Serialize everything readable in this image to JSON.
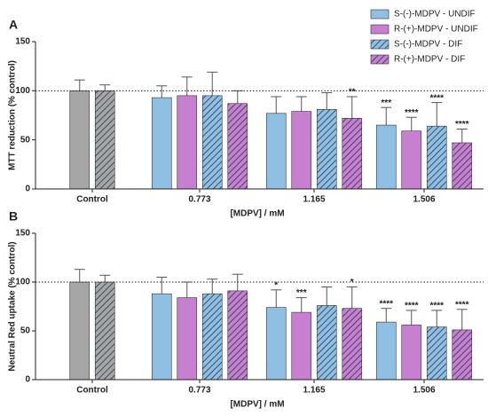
{
  "chart_data": [
    {
      "type": "bar",
      "panel": "A",
      "ylabel": "MTT reduction (% control)",
      "xlabel": "[MDPV] / mM",
      "categories": [
        "Control",
        "0.773",
        "1.165",
        "1.506"
      ],
      "ylim": [
        0,
        150
      ],
      "yticks": [
        0,
        50,
        100,
        150
      ],
      "reference_line": 100,
      "legend": "top-right",
      "control": [
        {
          "color": "#a6a6a6",
          "hatched": false,
          "value": 100,
          "error": 11
        },
        {
          "color": "#a6a6a6",
          "hatched": true,
          "value": 100,
          "error": 6
        }
      ],
      "series": [
        {
          "name": "S-(-)-MDPV - UNDIF",
          "color": "#8fbfe3",
          "hatched": false,
          "values": [
            null,
            93,
            77,
            65
          ],
          "errors": [
            null,
            12,
            17,
            18
          ],
          "annotations": [
            null,
            null,
            null,
            "***"
          ]
        },
        {
          "name": "R-(+)-MDPV - UNDIF",
          "color": "#c77fcf",
          "hatched": false,
          "values": [
            null,
            95,
            79,
            59
          ],
          "errors": [
            null,
            19,
            15,
            14
          ],
          "annotations": [
            null,
            null,
            null,
            "****"
          ]
        },
        {
          "name": "S-(-)-MDPV - DIF",
          "color": "#8fbfe3",
          "hatched": true,
          "values": [
            null,
            95,
            81,
            64
          ],
          "errors": [
            null,
            24,
            17,
            24
          ],
          "annotations": [
            null,
            null,
            null,
            "****"
          ]
        },
        {
          "name": "R-(+)-MDPV - DIF",
          "color": "#c77fcf",
          "hatched": true,
          "values": [
            null,
            87,
            72,
            47
          ],
          "errors": [
            null,
            13,
            22,
            14
          ],
          "annotations": [
            null,
            null,
            "**",
            "****"
          ]
        }
      ]
    },
    {
      "type": "bar",
      "panel": "B",
      "ylabel": "Neutral Red uptake (% control)",
      "xlabel": "[MDPV] / mM",
      "categories": [
        "Control",
        "0.773",
        "1.165",
        "1.506"
      ],
      "ylim": [
        0,
        150
      ],
      "yticks": [
        0,
        50,
        100,
        150
      ],
      "reference_line": 100,
      "control": [
        {
          "color": "#a6a6a6",
          "hatched": false,
          "value": 100,
          "error": 13
        },
        {
          "color": "#a6a6a6",
          "hatched": true,
          "value": 100,
          "error": 7
        }
      ],
      "series": [
        {
          "color": "#8fbfe3",
          "hatched": false,
          "values": [
            null,
            88,
            74,
            59
          ],
          "errors": [
            null,
            17,
            18,
            14
          ],
          "annotations": [
            null,
            null,
            "*",
            "****"
          ]
        },
        {
          "color": "#c77fcf",
          "hatched": false,
          "values": [
            null,
            84,
            69,
            56
          ],
          "errors": [
            null,
            16,
            15,
            15
          ],
          "annotations": [
            null,
            null,
            "***",
            "****"
          ]
        },
        {
          "color": "#8fbfe3",
          "hatched": true,
          "values": [
            null,
            88,
            76,
            54
          ],
          "errors": [
            null,
            15,
            19,
            17
          ],
          "annotations": [
            null,
            null,
            null,
            "****"
          ]
        },
        {
          "color": "#c77fcf",
          "hatched": true,
          "values": [
            null,
            91,
            73,
            51
          ],
          "errors": [
            null,
            17,
            22,
            21
          ],
          "annotations": [
            null,
            null,
            "*",
            "****"
          ]
        }
      ]
    }
  ]
}
